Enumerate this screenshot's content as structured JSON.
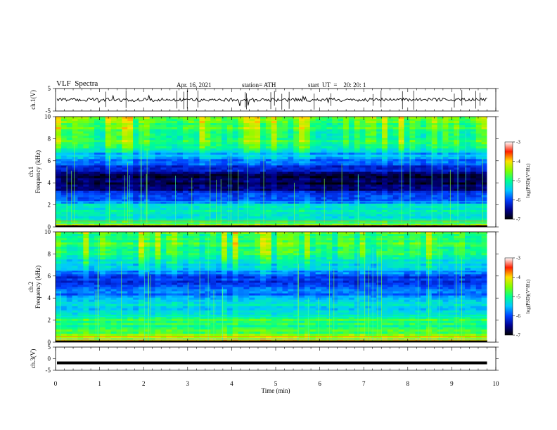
{
  "header": {
    "title": "VLF  Spectra",
    "date": "Apr. 16, 2021",
    "station": "station= ATH",
    "start": "start  UT  =    20: 20: 1"
  },
  "chart_data": [
    {
      "type": "line",
      "panel": "ch1-waveform",
      "ylabel": "ch.1(V)",
      "xlim": [
        0,
        10
      ],
      "ylim": [
        -5,
        5
      ],
      "yticks": [
        "5",
        "-5"
      ],
      "series": [
        {
          "x_range": [
            0,
            9.8
          ],
          "approx_level": 0,
          "approx_amplitude": 1.5,
          "color": "#000000"
        }
      ]
    },
    {
      "type": "heatmap",
      "panel": "ch1-spectrogram",
      "ylabel": "ch.1\nFrequency  (kHz)",
      "xlim": [
        0,
        10
      ],
      "ylim": [
        0,
        10
      ],
      "yticks": [
        "0",
        "2",
        "4",
        "6",
        "8",
        "10"
      ],
      "data_x_range": [
        0,
        9.8
      ],
      "colorbar": {
        "label": "log(PSD)(V²/Hz)",
        "range": [
          -7,
          -3
        ],
        "ticks": [
          "-3",
          "-4",
          "-5",
          "-6",
          "-7"
        ]
      },
      "band_profile_logpsd": [
        [
          0.0,
          -3.9
        ],
        [
          0.3,
          -4.6
        ],
        [
          0.8,
          -5.2
        ],
        [
          1.3,
          -5.3
        ],
        [
          1.8,
          -5.2
        ],
        [
          2.2,
          -5.6
        ],
        [
          2.6,
          -6.0
        ],
        [
          3.0,
          -6.2
        ],
        [
          3.5,
          -6.6
        ],
        [
          4.0,
          -6.8
        ],
        [
          4.5,
          -6.8
        ],
        [
          5.0,
          -6.4
        ],
        [
          5.5,
          -6.1
        ],
        [
          6.0,
          -5.9
        ],
        [
          6.5,
          -5.6
        ],
        [
          7.0,
          -5.3
        ],
        [
          7.5,
          -5.0
        ],
        [
          8.0,
          -4.9
        ],
        [
          9.0,
          -4.8
        ],
        [
          10.0,
          -4.7
        ]
      ]
    },
    {
      "type": "heatmap",
      "panel": "ch2-spectrogram",
      "ylabel": "ch.2\nFrequency  (kHz)",
      "xlim": [
        0,
        10
      ],
      "ylim": [
        0,
        10
      ],
      "yticks": [
        "0",
        "2",
        "4",
        "6",
        "8",
        "10"
      ],
      "data_x_range": [
        0,
        9.8
      ],
      "colorbar": {
        "label": "log(PSD)(V²/Hz)",
        "range": [
          -7,
          -3
        ],
        "ticks": [
          "-3",
          "-4",
          "-5",
          "-6",
          "-7"
        ]
      },
      "band_profile_logpsd": [
        [
          0.0,
          -4.0
        ],
        [
          0.5,
          -4.3
        ],
        [
          1.0,
          -4.8
        ],
        [
          1.5,
          -5.0
        ],
        [
          2.0,
          -4.8
        ],
        [
          2.5,
          -5.3
        ],
        [
          3.0,
          -5.6
        ],
        [
          3.5,
          -5.2
        ],
        [
          4.0,
          -5.6
        ],
        [
          4.5,
          -5.9
        ],
        [
          5.0,
          -5.8
        ],
        [
          5.5,
          -6.2
        ],
        [
          6.0,
          -6.1
        ],
        [
          6.5,
          -5.6
        ],
        [
          7.0,
          -5.4
        ],
        [
          7.5,
          -5.1
        ],
        [
          8.0,
          -4.9
        ],
        [
          9.0,
          -4.8
        ],
        [
          10.0,
          -4.8
        ]
      ]
    },
    {
      "type": "line",
      "panel": "ch3-waveform",
      "ylabel": "ch.3(V)",
      "xlabel": "Time  (min)",
      "xlim": [
        0,
        10
      ],
      "ylim": [
        -5,
        5
      ],
      "yticks": [
        "5",
        "0",
        "-5"
      ],
      "xticks": [
        "0",
        "1",
        "2",
        "3",
        "4",
        "5",
        "6",
        "7",
        "8",
        "9",
        "10"
      ],
      "series": [
        {
          "x_range": [
            0,
            9.8
          ],
          "approx_level": -1.8,
          "color": "#000000"
        }
      ]
    }
  ],
  "colors": {
    "axis": "#000000",
    "colormap": [
      "#000000",
      "#000090",
      "#0040ff",
      "#00c8ff",
      "#00ff90",
      "#80ff00",
      "#ffe000",
      "#ff2000",
      "#ffffff"
    ]
  }
}
